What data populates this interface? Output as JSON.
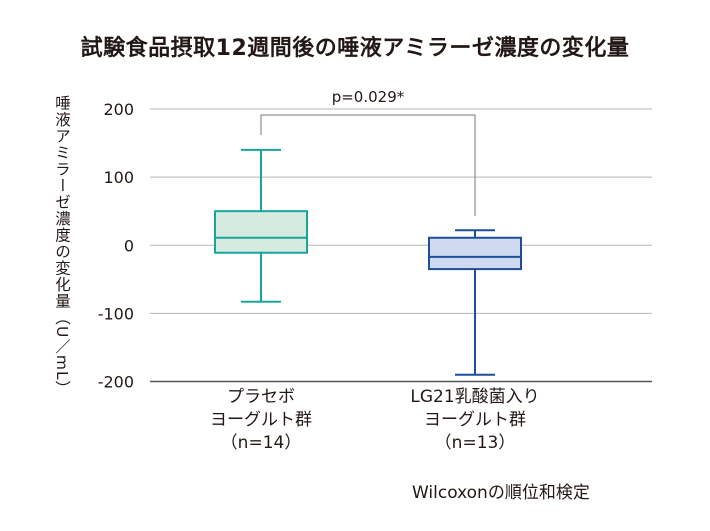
{
  "chart_data": {
    "type": "box",
    "title": "試験食品摂取12週間後の唾液アミラーゼ濃度の変化量",
    "ylabel": "唾液アミラーゼ濃度の変化量（U／mL）",
    "ylim": [
      -200,
      200
    ],
    "yticks": [
      200,
      100,
      0,
      -100,
      -200
    ],
    "grid": true,
    "categories": [
      {
        "lines": [
          "プラセボ",
          "ヨーグルト群",
          "（n=14）"
        ]
      },
      {
        "lines": [
          "LG21乳酸菌入り",
          "ヨーグルト群",
          "（n=13）"
        ]
      }
    ],
    "series": [
      {
        "whisker_high": 140,
        "q3": 50,
        "median": 11,
        "q1": -11,
        "whisker_low": -83,
        "stroke": "#1aa59b",
        "fill": "#d5ebe2"
      },
      {
        "whisker_high": 22,
        "q3": 11,
        "median": -17,
        "q1": -35,
        "whisker_low": -190,
        "stroke": "#1e4e9a",
        "fill": "#cfdaf0"
      }
    ],
    "annotation": "p=0.029*",
    "note": "Wilcoxonの順位和検定"
  }
}
